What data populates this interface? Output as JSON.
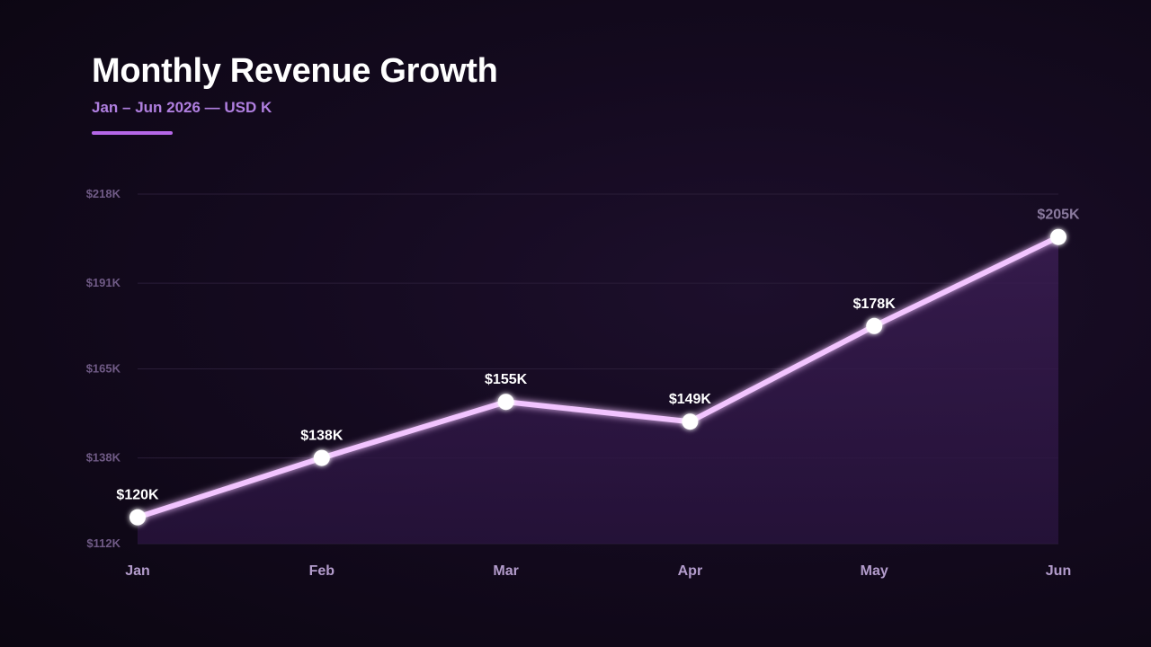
{
  "header": {
    "title": "Monthly Revenue Growth",
    "subtitle": "Jan – Jun 2026 — USD K"
  },
  "colors": {
    "background": "#0d0814",
    "accent": "#b567e8",
    "line": "#f2c4ff",
    "area": "#3a1d52",
    "point": "#ffffff",
    "axis_label": "#6f5a85",
    "category_label": "#b39ccc",
    "data_label": "#ffffff"
  },
  "chart_data": {
    "type": "area",
    "categories": [
      "Jan",
      "Feb",
      "Mar",
      "Apr",
      "May",
      "Jun"
    ],
    "values": [
      120,
      138,
      155,
      149,
      178,
      205
    ],
    "data_labels": [
      "$120K",
      "$138K",
      "$155K",
      "$149K",
      "$178K",
      "$205K"
    ],
    "yticks": [
      112,
      138,
      165,
      191,
      218
    ],
    "ytick_labels": [
      "$112K",
      "$138K",
      "$165K",
      "$191K",
      "$218K"
    ],
    "ylim": [
      112,
      218
    ],
    "grid": true,
    "legend": "none",
    "title": "Monthly Revenue Growth",
    "subtitle": "Jan – Jun 2026 — USD K"
  }
}
